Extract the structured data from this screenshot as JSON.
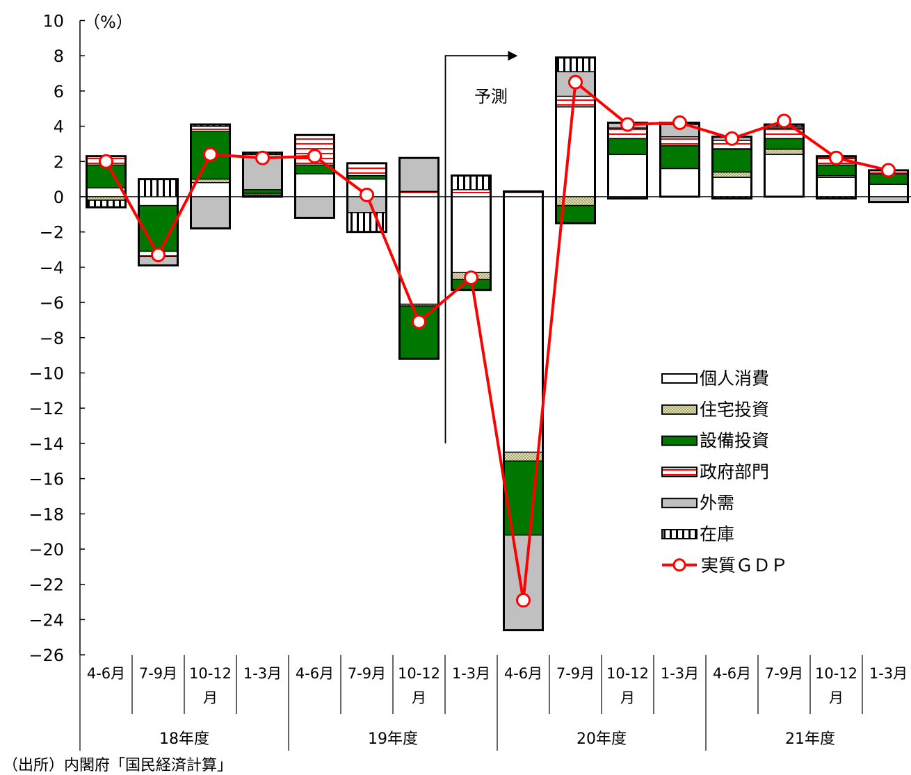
{
  "chart_data": {
    "type": "bar",
    "stacked": true,
    "unit_label": "（%）",
    "ylim": [
      -26,
      10
    ],
    "ytick_step": 2,
    "grid": false,
    "legend_position": "right-middle",
    "categories": [
      "4-6月",
      "7-9月",
      "10-12月",
      "1-3月",
      "4-6月",
      "7-9月",
      "10-12月",
      "1-3月",
      "4-6月",
      "7-9月",
      "10-12月",
      "1-3月",
      "4-6月",
      "7-9月",
      "10-12月",
      "1-3月"
    ],
    "category_lines": [
      [
        "4-6月"
      ],
      [
        "7-9月"
      ],
      [
        "10-12",
        "月"
      ],
      [
        "1-3月"
      ],
      [
        "4-6月"
      ],
      [
        "7-9月"
      ],
      [
        "10-12",
        "月"
      ],
      [
        "1-3月"
      ],
      [
        "4-6月"
      ],
      [
        "7-9月"
      ],
      [
        "10-12",
        "月"
      ],
      [
        "1-3月"
      ],
      [
        "4-6月"
      ],
      [
        "7-9月"
      ],
      [
        "10-12",
        "月"
      ],
      [
        "1-3月"
      ]
    ],
    "fiscal_years": [
      "18年度",
      "19年度",
      "20年度",
      "21年度"
    ],
    "series": [
      {
        "name": "個人消費",
        "values": [
          0.5,
          -0.5,
          0.8,
          0.1,
          1.3,
          1.0,
          -6.1,
          -4.3,
          -14.5,
          5.1,
          2.4,
          1.6,
          1.1,
          2.4,
          1.1,
          0.7
        ]
      },
      {
        "name": "住宅投資",
        "values": [
          -0.2,
          0.0,
          0.2,
          0.1,
          0.0,
          0.0,
          -0.1,
          -0.4,
          -0.5,
          -0.5,
          -0.1,
          0.0,
          0.3,
          0.3,
          0.1,
          0.0
        ]
      },
      {
        "name": "設備投資",
        "values": [
          1.3,
          -2.6,
          2.7,
          0.2,
          0.5,
          0.2,
          -3.0,
          -0.6,
          -4.2,
          -1.0,
          0.9,
          1.3,
          1.3,
          0.6,
          0.6,
          0.6
        ]
      },
      {
        "name": "政府部門",
        "values": [
          0.5,
          -0.3,
          0.3,
          0.0,
          1.7,
          0.7,
          0.3,
          0.4,
          0.3,
          0.6,
          0.6,
          0.5,
          0.5,
          0.6,
          0.4,
          0.2
        ]
      },
      {
        "name": "外需",
        "values": [
          0.0,
          -0.5,
          -1.8,
          2.0,
          -1.2,
          -0.9,
          1.9,
          0.0,
          -5.4,
          1.4,
          0.3,
          0.7,
          0.2,
          0.1,
          0.1,
          -0.3
        ]
      },
      {
        "name": "在庫",
        "values": [
          -0.4,
          1.0,
          0.1,
          0.1,
          0.0,
          -1.1,
          0.0,
          0.8,
          0.0,
          0.8,
          0.0,
          0.1,
          -0.1,
          0.1,
          -0.1,
          0.0
        ]
      }
    ],
    "line_series": {
      "name": "実質ＧＤＰ",
      "values": [
        2.0,
        -3.3,
        2.4,
        2.2,
        2.3,
        0.1,
        -7.1,
        -4.6,
        -22.9,
        6.5,
        4.1,
        4.2,
        3.3,
        4.3,
        2.2,
        1.5
      ]
    },
    "annotation": {
      "text": "予測",
      "from_index": 7
    },
    "colors": {
      "個人消費": "#ffffff",
      "住宅投資": "#d8d8a8",
      "設備投資": "#007800",
      "政府部門": "#ff0000",
      "外需": "#c0c0c0",
      "在庫": "#000000",
      "実質ＧＤＰ": "#ff0000"
    }
  },
  "source_note": "（出所）内閣府「国民経済計算」"
}
